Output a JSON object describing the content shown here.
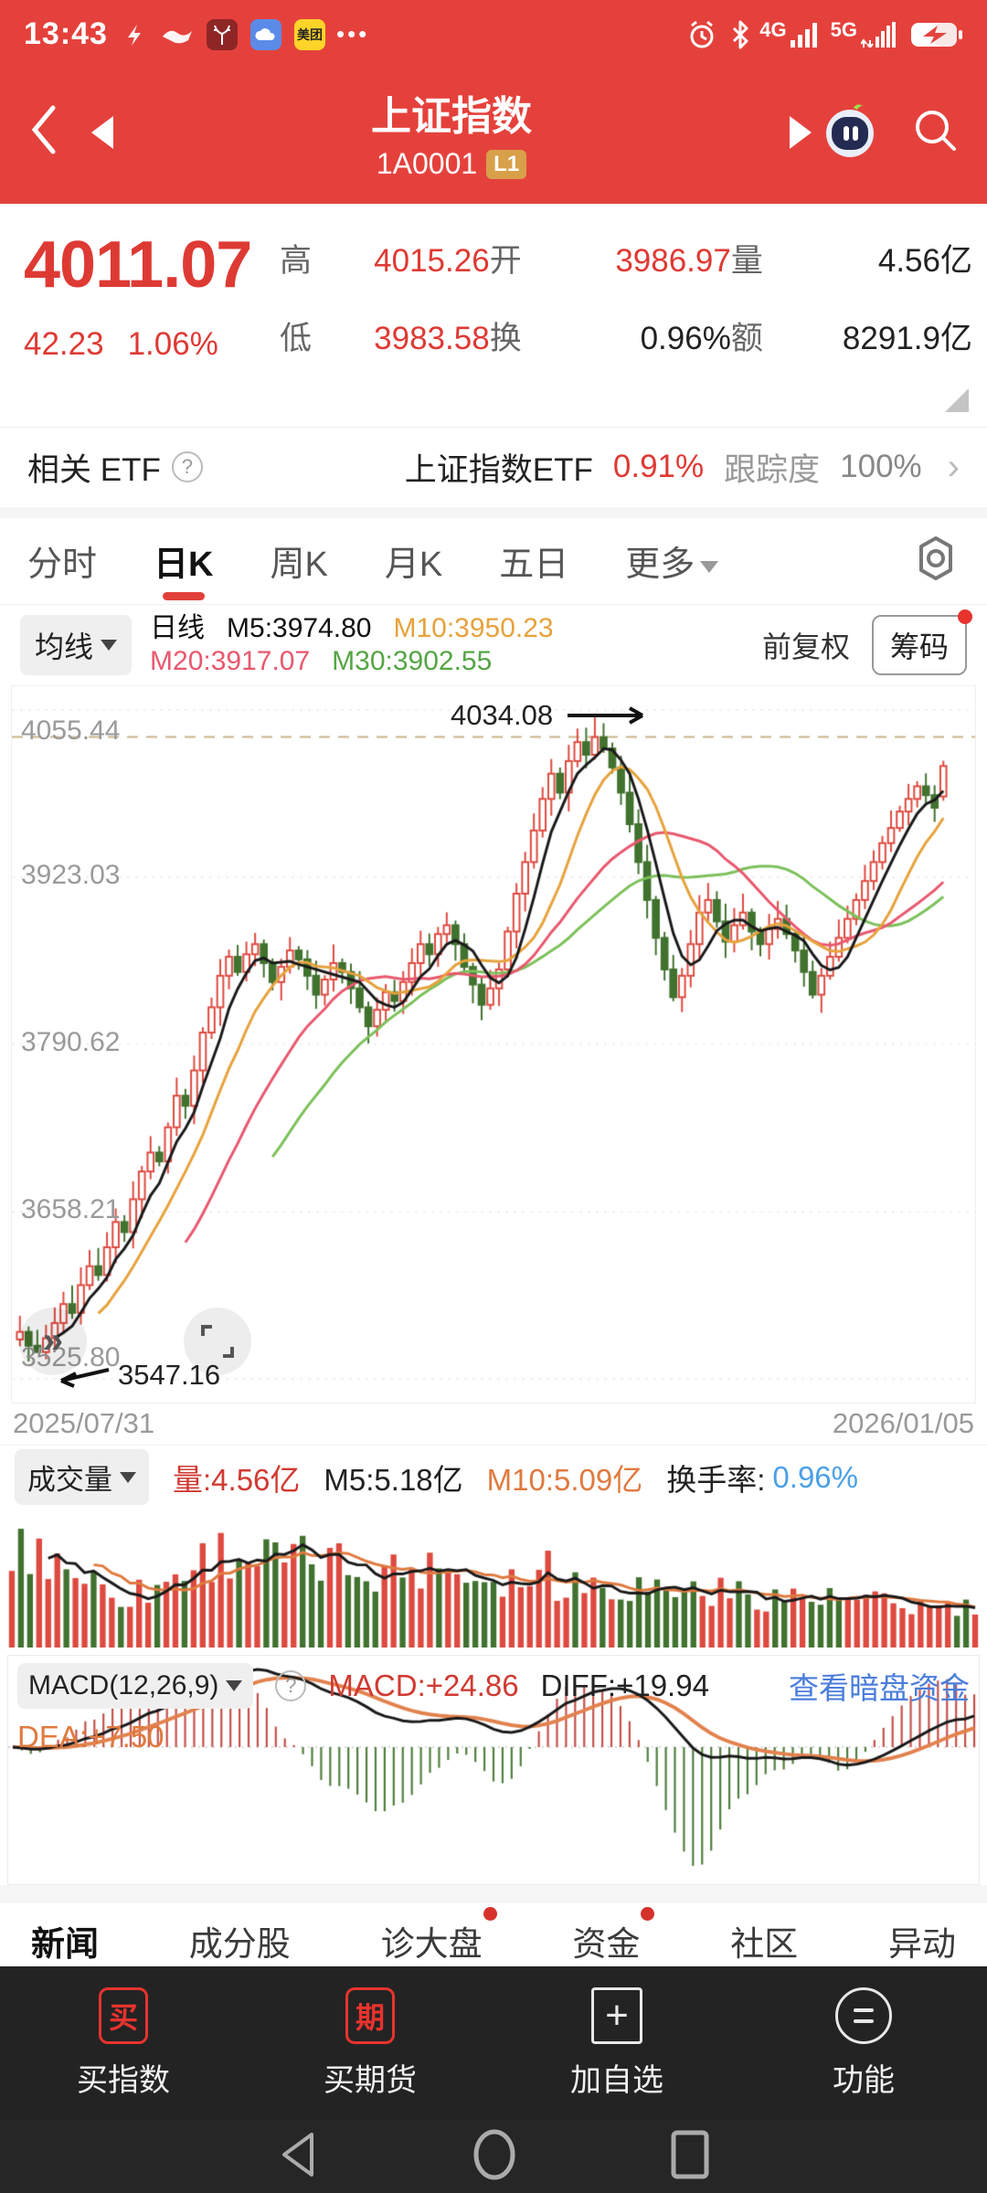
{
  "status_bar": {
    "time": "13:43",
    "meituan": "美团",
    "more_dots": "•••",
    "network_4g": "4G",
    "network_5g": "5G"
  },
  "header": {
    "title": "上证指数",
    "code": "1A0001",
    "badge": "L1"
  },
  "quote": {
    "price": "4011.07",
    "change": "42.23",
    "change_pct": "1.06%",
    "high_label": "高",
    "high": "4015.26",
    "open_label": "开",
    "open": "3986.97",
    "vol_label": "量",
    "vol": "4.56亿",
    "low_label": "低",
    "low": "3983.58",
    "turnover_label": "换",
    "turnover": "0.96%",
    "amount_label": "额",
    "amount": "8291.9亿"
  },
  "etf": {
    "label": "相关 ETF",
    "name": "上证指数ETF",
    "pct": "0.91%",
    "tracking_label": "跟踪度",
    "tracking_value": "100%",
    "chevron": "›"
  },
  "tabs": [
    {
      "label": "分时"
    },
    {
      "label": "日K"
    },
    {
      "label": "周K"
    },
    {
      "label": "月K"
    },
    {
      "label": "五日"
    },
    {
      "label": "更多"
    }
  ],
  "kline_legend": {
    "ma_button": "均线",
    "period": "日线",
    "m5": "M5:3974.80",
    "m10": "M10:3950.23",
    "m20": "M20:3917.07",
    "m30": "M30:3902.55",
    "adjust": "前复权",
    "chips_button": "筹码"
  },
  "kline_axis": {
    "y1": "4055.44",
    "y2": "3923.03",
    "y3": "3790.62",
    "y4": "3658.21",
    "y5": "3525.80",
    "date_left": "2025/07/31",
    "date_right": "2026/01/05",
    "high_note": "4034.08",
    "low_note": "3547.16"
  },
  "volume_panel": {
    "button": "成交量",
    "vol": "量:4.56亿",
    "m5": "M5:5.18亿",
    "m10": "M10:5.09亿",
    "turnover_label": "换手率:",
    "turnover_value": "0.96%"
  },
  "macd_panel": {
    "button": "MACD(12,26,9)",
    "macd": "MACD:+24.86",
    "diff": "DIFF:+19.94",
    "dea": "DEA:+7.50",
    "link": "查看暗盘资金"
  },
  "bottom_tabs": [
    {
      "label": "新闻"
    },
    {
      "label": "成分股"
    },
    {
      "label": "诊大盘"
    },
    {
      "label": "资金"
    },
    {
      "label": "社区"
    },
    {
      "label": "异动"
    }
  ],
  "action_bar": [
    {
      "label": "买指数",
      "icon_char": "买"
    },
    {
      "label": "买期货",
      "icon_char": "期"
    },
    {
      "label": "加自选",
      "icon_char": "+"
    },
    {
      "label": "功能",
      "icon_char": ""
    }
  ],
  "colors": {
    "app_red": "#E5413C",
    "price_red": "#DE3A34",
    "up": "#DE4A40",
    "down": "#41722F",
    "ma5": "#1A1A1A",
    "ma10": "#E6A23C",
    "ma20": "#E8586E",
    "ma30": "#7CC05A",
    "link_blue": "#4A7DDB",
    "value_blue": "#4BA0E8",
    "dashed_high": "#C9B489"
  },
  "chart_data": {
    "type": "candlestick",
    "title": "上证指数 日K",
    "y_ticks": [
      4055.44,
      3923.03,
      3790.62,
      3658.21,
      3525.8
    ],
    "ylim": [
      3525.8,
      4055.44
    ],
    "x_range": [
      "2025/07/31",
      "2026/01/05"
    ],
    "grid": true,
    "high_annotation": 4034.08,
    "low_annotation": 3547.16,
    "last_candle": {
      "open": 3986.97,
      "high": 4015.26,
      "low": 3983.58,
      "close": 4011.07
    },
    "ma_values": {
      "m5": 3974.8,
      "m10": 3950.23,
      "m20": 3917.07,
      "m30": 3902.55
    },
    "volume": {
      "last_yi": 4.56,
      "m5_yi": 5.18,
      "m10_yi": 5.09,
      "turnover_pct": 0.96
    },
    "macd": {
      "params": [
        12,
        26,
        9
      ],
      "macd": 24.86,
      "diff": 19.94,
      "dea": 7.5
    },
    "closes_approx": [
      3563,
      3552,
      3547,
      3558,
      3570,
      3585,
      3578,
      3600,
      3615,
      3608,
      3630,
      3650,
      3642,
      3668,
      3690,
      3705,
      3698,
      3725,
      3750,
      3742,
      3770,
      3800,
      3820,
      3845,
      3860,
      3848,
      3862,
      3870,
      3855,
      3840,
      3852,
      3865,
      3858,
      3845,
      3830,
      3842,
      3855,
      3848,
      3835,
      3820,
      3805,
      3818,
      3832,
      3825,
      3840,
      3855,
      3870,
      3862,
      3878,
      3885,
      3870,
      3852,
      3838,
      3822,
      3835,
      3850,
      3880,
      3910,
      3935,
      3960,
      3985,
      4005,
      3990,
      4015,
      4030,
      4020,
      4034,
      4025,
      4010,
      3990,
      3965,
      3935,
      3905,
      3875,
      3850,
      3828,
      3845,
      3870,
      3895,
      3905,
      3888,
      3872,
      3885,
      3895,
      3880,
      3870,
      3882,
      3890,
      3878,
      3865,
      3848,
      3830,
      3845,
      3860,
      3875,
      3890,
      3905,
      3920,
      3935,
      3950,
      3962,
      3975,
      3985,
      3995,
      3988,
      3978,
      4011
    ]
  }
}
